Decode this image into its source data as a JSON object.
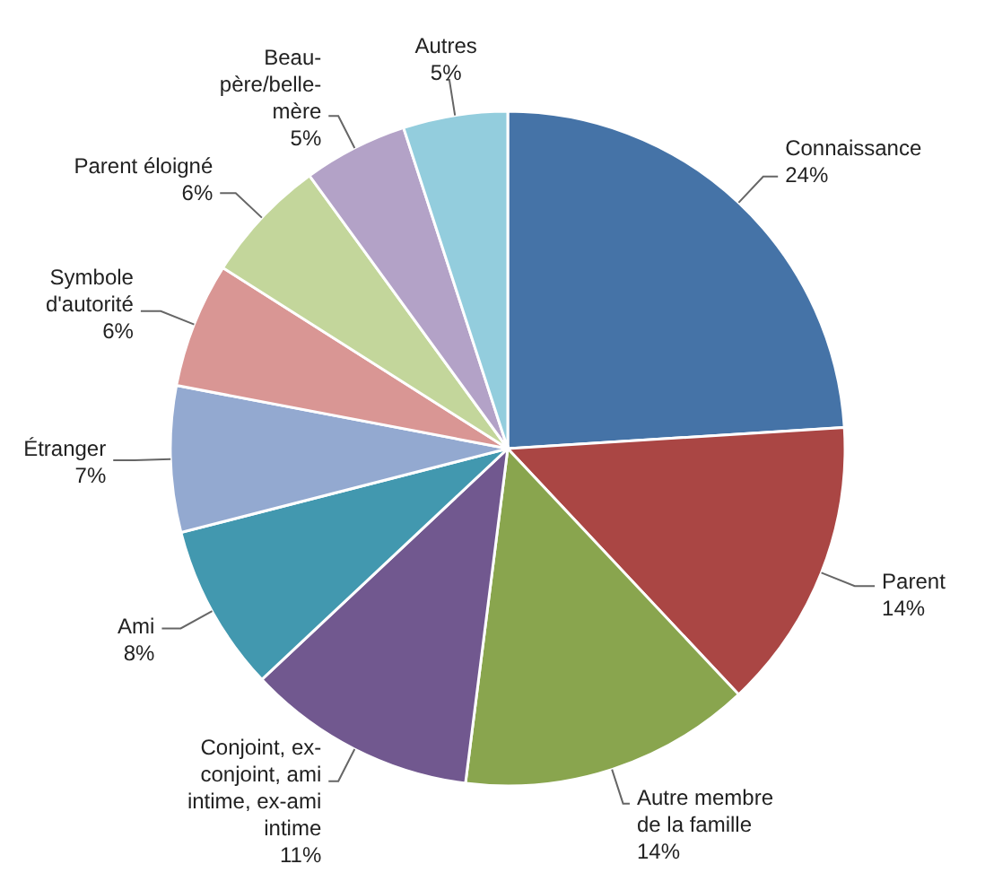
{
  "chart_data": {
    "type": "pie",
    "categories": [
      "Connaissance",
      "Parent",
      "Autre membre de la famille",
      "Conjoint, ex-conjoint, ami intime, ex-ami intime",
      "Ami",
      "Étranger",
      "Symbole d'autorité",
      "Parent éloigné",
      "Beau-père/belle-mère",
      "Autres"
    ],
    "values": [
      24,
      14,
      14,
      11,
      8,
      7,
      6,
      6,
      5,
      5
    ],
    "colors": [
      "#4573a7",
      "#aa4644",
      "#89a54e",
      "#71588f",
      "#4298af",
      "#93a9d0",
      "#d99694",
      "#c3d69b",
      "#b3a2c7",
      "#93cddd"
    ],
    "value_labels": [
      "24%",
      "14%",
      "14%",
      "11%",
      "8%",
      "7%",
      "6%",
      "6%",
      "5%",
      "5%"
    ]
  }
}
